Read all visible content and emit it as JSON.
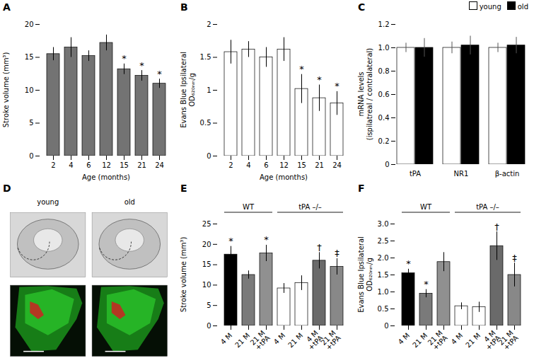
{
  "chart_data": [
    {
      "type": "bar",
      "title": "A",
      "categories": [
        "2",
        "4",
        "6",
        "12",
        "15",
        "21",
        "24"
      ],
      "values": [
        15.5,
        16.5,
        15.2,
        17.2,
        13.2,
        12.2,
        11.0
      ],
      "errors": [
        1.0,
        1.5,
        0.8,
        1.2,
        0.8,
        0.8,
        0.7
      ],
      "sig_labels": [
        null,
        null,
        null,
        null,
        "*",
        "*",
        "*"
      ],
      "color": "#737373",
      "xlabel": "Age (months)",
      "ylabel": "Stroke volume (mm³)",
      "ylim": [
        0,
        20
      ],
      "yticks": [
        0,
        5,
        10,
        15,
        20
      ]
    },
    {
      "type": "bar",
      "title": "B",
      "categories": [
        "2",
        "4",
        "6",
        "12",
        "15",
        "21",
        "24"
      ],
      "values": [
        1.58,
        1.62,
        1.5,
        1.62,
        1.02,
        0.88,
        0.8
      ],
      "errors": [
        0.18,
        0.12,
        0.15,
        0.18,
        0.22,
        0.2,
        0.18
      ],
      "sig_labels": [
        null,
        null,
        null,
        null,
        "*",
        "*",
        "*"
      ],
      "color": "#ffffff",
      "xlabel": "Age (months)",
      "ylabel": "Evans Blue Ipsilateral\nOD₆₂₀ₙₘ/g",
      "ylim": [
        0,
        2
      ],
      "yticks": [
        0,
        0.5,
        1,
        1.5,
        2
      ]
    },
    {
      "type": "bar",
      "title": "C",
      "categories": [
        "tPA",
        "NR1",
        "β-actin"
      ],
      "series": [
        {
          "name": "young",
          "color": "#ffffff",
          "values": [
            1.0,
            1.0,
            1.0
          ],
          "errors": [
            0.04,
            0.05,
            0.04
          ]
        },
        {
          "name": "old",
          "color": "#000000",
          "values": [
            1.0,
            1.02,
            1.02
          ],
          "errors": [
            0.08,
            0.08,
            0.07
          ]
        }
      ],
      "ylabel": "mRNA levels\n(ispilatreal / contralateral)",
      "ylim": [
        0,
        1.2
      ],
      "yticks": [
        0,
        0.2,
        0.4,
        0.6,
        0.8,
        {
          "value": 1.0,
          "label": "1.0"
        },
        1.2
      ],
      "legend": "upper right"
    },
    {
      "type": "image",
      "title": "D",
      "categories": [
        "young",
        "old"
      ]
    },
    {
      "type": "bar",
      "title": "E",
      "categories": [
        "4 M",
        "21 M",
        "21 M\n+tPA",
        "4 M",
        "21 M",
        "4 M\n+tPA",
        "21 M\n+tPA"
      ],
      "values": [
        17.5,
        12.5,
        17.8,
        9.2,
        10.5,
        16.0,
        14.5
      ],
      "errors": [
        2.0,
        1.0,
        2.0,
        1.2,
        1.8,
        2.0,
        2.0
      ],
      "colors": [
        "#000000",
        "#7a7a7a",
        "#909090",
        "#ffffff",
        "#ffffff",
        "#6a6a6a",
        "#888888"
      ],
      "sig_labels": [
        "*",
        null,
        "*",
        null,
        null,
        "†",
        "‡"
      ],
      "group_labels": [
        "WT",
        "WT",
        "WT",
        "tPA –/–",
        "tPA –/–",
        "tPA –/–",
        "tPA –/–"
      ],
      "ylabel": "Stroke volume (mm³)",
      "ylim": [
        0,
        25
      ],
      "yticks": [
        0,
        5,
        10,
        15,
        20,
        25
      ]
    },
    {
      "type": "bar",
      "title": "F",
      "categories": [
        "4 M",
        "21 M",
        "21 M\n+tPA",
        "4 M",
        "21 M",
        "4 M\n+tPA",
        "21 M\n+tPA"
      ],
      "values": [
        1.55,
        0.95,
        1.88,
        0.58,
        0.55,
        2.35,
        1.5
      ],
      "errors": [
        0.12,
        0.12,
        0.28,
        0.1,
        0.15,
        0.42,
        0.35
      ],
      "colors": [
        "#000000",
        "#7a7a7a",
        "#909090",
        "#ffffff",
        "#ffffff",
        "#6a6a6a",
        "#888888"
      ],
      "sig_labels": [
        "*",
        "*",
        null,
        null,
        null,
        "†",
        "‡"
      ],
      "group_labels": [
        "WT",
        "WT",
        "WT",
        "tPA –/–",
        "tPA –/–",
        "tPA –/–",
        "tPA –/–"
      ],
      "ylabel": "Evans Blue Ipsilateral\nOD₆₂₀ₙₘ/g",
      "ylim": [
        0,
        3
      ],
      "yticks": [
        0,
        0.5,
        {
          "value": 1.0,
          "label": "1.0"
        },
        1.5,
        {
          "value": 2.0,
          "label": "2.0"
        },
        2.5,
        {
          "value": 3.0,
          "label": "3.0"
        }
      ]
    }
  ]
}
